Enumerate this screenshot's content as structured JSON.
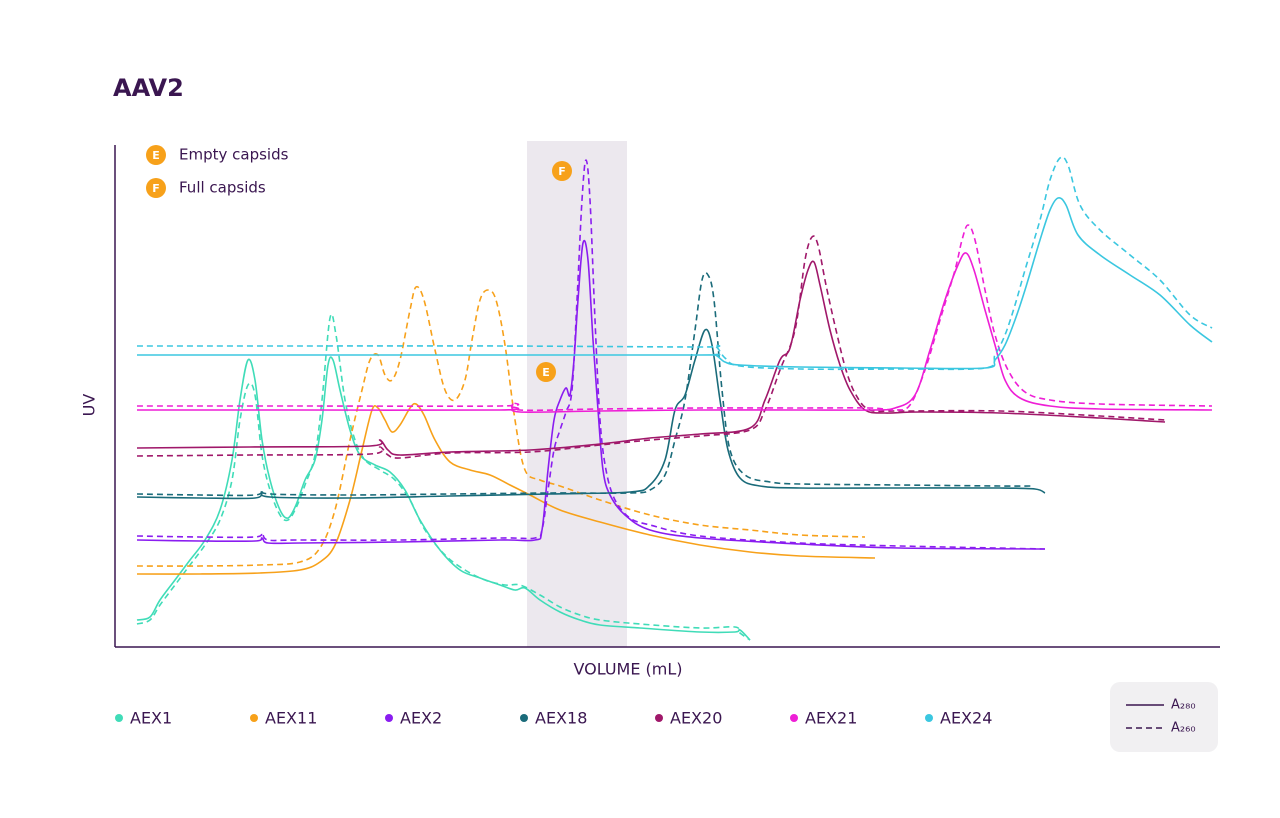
{
  "chart_data": {
    "type": "line",
    "title": "AAV2",
    "x_label": "VOLUME (mL)",
    "y_label": "UV",
    "xlim": [
      0,
      1105
    ],
    "ylim": [
      0,
      502
    ],
    "highlight": [
      412,
      512
    ],
    "marker_color": "#f7a11a",
    "markers": [
      {
        "label": "E",
        "text": "Empty capsids"
      },
      {
        "label": "F",
        "text": "Full capsids"
      }
    ],
    "annotations": [
      {
        "label": "E",
        "x": 431,
        "y": 275
      },
      {
        "label": "F",
        "x": 447,
        "y": 476
      }
    ],
    "line_styles": [
      {
        "label": "A₂₈₀",
        "dash": "solid"
      },
      {
        "label": "A₂₆₀",
        "dash": "dashed"
      }
    ],
    "series": [
      {
        "name": "AEX1",
        "color": "#40dcb8",
        "traces": [
          {
            "x": [
              22,
              35,
              45,
              60,
              75,
              90,
              105,
              117,
              125,
              133,
              140,
              147,
              155,
              165,
              173,
              181,
              190,
              200,
              207,
              213,
              218,
              225,
              235,
              245,
              260,
              275,
              290,
              305,
              325,
              345,
              365,
              385,
              400,
              410,
              425,
              445,
              465,
              485,
              525,
              585,
              620,
              625,
              635
            ],
            "values": [
              27,
              30,
              47,
              67,
              87,
              107,
              137,
              187,
              247,
              287,
              267,
              207,
              167,
              137,
              129,
              142,
              167,
              187,
              227,
              282,
              287,
              257,
              217,
              192,
              182,
              175,
              157,
              127,
              97,
              77,
              69,
              62,
              57,
              59,
              47,
              35,
              27,
              22,
              19,
              15,
              15,
              17,
              7
            ]
          },
          {
            "x": [
              22,
              35,
              45,
              60,
              75,
              90,
              105,
              117,
              125,
              133,
              140,
              147,
              155,
              165,
              173,
              181,
              190,
              200,
              207,
              215,
              221,
              230,
              240,
              250,
              265,
              280,
              295,
              310,
              330,
              350,
              370,
              390,
              405,
              425,
              445,
              465,
              485,
              525,
              585,
              620,
              625,
              635
            ],
            "values": [
              23,
              27,
              42,
              62,
              82,
              102,
              127,
              167,
              227,
              262,
              252,
              192,
              157,
              132,
              127,
              139,
              162,
              192,
              247,
              329,
              312,
              247,
              207,
              187,
              177,
              167,
              147,
              117,
              92,
              77,
              67,
              62,
              62,
              52,
              40,
              32,
              27,
              23,
              19,
              20,
              14,
              7
            ]
          }
        ]
      },
      {
        "name": "AEX11",
        "color": "#f7a11a",
        "traces": [
          {
            "x": [
              22,
              85,
              145,
              185,
              205,
              220,
              235,
              247,
              257,
              263,
              270,
              277,
              285,
              295,
              301,
              309,
              320,
              335,
              355,
              375,
              395,
              415,
              445,
              485,
              535,
              585,
              635,
              685,
              760
            ],
            "values": [
              73,
              73,
              74,
              77,
              85,
              102,
              147,
              197,
              237,
              239,
              227,
              215,
              222,
              239,
              243,
              232,
              207,
              185,
              177,
              172,
              162,
              152,
              137,
              125,
              112,
              102,
              95,
              91,
              89
            ]
          },
          {
            "x": [
              22,
              85,
              145,
              185,
              205,
              220,
              235,
              247,
              255,
              263,
              270,
              277,
              285,
              295,
              301,
              309,
              320,
              330,
              340,
              350,
              357,
              365,
              373,
              381,
              390,
              400,
              410,
              425,
              445,
              485,
              535,
              585,
              635,
              685,
              750
            ],
            "values": [
              81,
              81,
              82,
              85,
              99,
              137,
              207,
              257,
              287,
              292,
              272,
              267,
              287,
              337,
              360,
              347,
              297,
              257,
              247,
              267,
              307,
              347,
              357,
              347,
              302,
              227,
              177,
              167,
              161,
              147,
              132,
              122,
              117,
              112,
              110
            ]
          }
        ]
      },
      {
        "name": "AEX2",
        "color": "#8a1df0",
        "traces": [
          {
            "x": [
              22,
              85,
              140,
              147,
              153,
              185,
              285,
              385,
              420,
              427,
              433,
              439,
              445,
              451,
              455,
              459,
              463,
              468,
              473,
              478,
              483,
              488,
              495,
              510,
              535,
              585,
              685,
              785,
              930
            ],
            "values": [
              107,
              106,
              106,
              109,
              104,
              104,
              105,
              107,
              107,
              117,
              177,
              227,
              247,
              259,
              252,
              287,
              347,
              404,
              387,
              307,
              237,
              177,
              152,
              132,
              117,
              109,
              103,
              99,
              98
            ]
          },
          {
            "x": [
              22,
              85,
              140,
              147,
              153,
              185,
              285,
              385,
              420,
              427,
              433,
              439,
              445,
              451,
              457,
              462,
              467,
              471,
              475,
              480,
              485,
              491,
              500,
              515,
              535,
              585,
              685,
              785,
              930
            ],
            "values": [
              111,
              110,
              110,
              114,
              107,
              107,
              107,
              109,
              109,
              117,
              157,
              197,
              217,
              235,
              257,
              347,
              447,
              487,
              447,
              327,
              227,
              177,
              147,
              129,
              122,
              111,
              104,
              101,
              98
            ]
          }
        ]
      },
      {
        "name": "AEX18",
        "color": "#1a6b7a",
        "traces": [
          {
            "x": [
              22,
              85,
              140,
              147,
              155,
              235,
              335,
              435,
              515,
              535,
              550,
              560,
              570,
              580,
              590,
              597,
              605,
              613,
              625,
              645,
              685,
              785,
              885,
              920,
              930
            ],
            "values": [
              150,
              149,
              149,
              155,
              150,
              149,
              151,
              153,
              155,
              162,
              187,
              237,
              252,
              287,
              317,
              302,
              247,
              197,
              169,
              161,
              159,
              159,
              159,
              158,
              154
            ]
          },
          {
            "x": [
              22,
              85,
              140,
              147,
              155,
              235,
              335,
              435,
              515,
              535,
              550,
              560,
              570,
              580,
              587,
              593,
              599,
              607,
              615,
              630,
              655,
              685,
              785,
              885,
              917
            ],
            "values": [
              153,
              152,
              152,
              157,
              153,
              152,
              153,
              154,
              154,
              157,
              172,
              207,
              247,
              317,
              367,
              372,
              347,
              257,
              197,
              172,
              165,
              163,
              162,
              161,
              161
            ]
          }
        ]
      },
      {
        "name": "AEX20",
        "color": "#a0186a",
        "traces": [
          {
            "x": [
              22,
              135,
              255,
              265,
              273,
              285,
              335,
              415,
              485,
              535,
              585,
              635,
              650,
              665,
              675,
              685,
              693,
              699,
              705,
              715,
              725,
              735,
              750,
              770,
              805,
              885,
              985,
              1050
            ],
            "values": [
              199,
              200,
              201,
              207,
              197,
              192,
              195,
              197,
              203,
              209,
              213,
              219,
              247,
              287,
              299,
              347,
              377,
              385,
              362,
              317,
              282,
              257,
              237,
              234,
              235,
              234,
              229,
              225
            ]
          },
          {
            "x": [
              22,
              135,
              255,
              265,
              273,
              285,
              335,
              415,
              485,
              535,
              585,
              635,
              650,
              665,
              680,
              690,
              697,
              703,
              711,
              721,
              731,
              741,
              755,
              785,
              885,
              985,
              1050
            ],
            "values": [
              191,
              192,
              193,
              200,
              192,
              189,
              194,
              195,
              202,
              207,
              211,
              217,
              237,
              277,
              317,
              387,
              410,
              402,
              362,
              317,
              277,
              252,
              237,
              236,
              236,
              231,
              227
            ]
          }
        ]
      },
      {
        "name": "AEX21",
        "color": "#ee1fd6",
        "traces": [
          {
            "x": [
              22,
              185,
              385,
              397,
              405,
              485,
              585,
              685,
              755,
              780,
              800,
              815,
              830,
              843,
              851,
              859,
              870,
              880,
              890,
              905,
              935,
              985,
              1097
            ],
            "values": [
              237,
              237,
              237,
              240,
              235,
              236,
              237,
              237,
              237,
              239,
              252,
              297,
              347,
              382,
              394,
              377,
              337,
              302,
              267,
              249,
              241,
              238,
              237
            ]
          },
          {
            "x": [
              22,
              185,
              385,
              397,
              405,
              485,
              585,
              685,
              755,
              780,
              795,
              810,
              825,
              840,
              847,
              853,
              860,
              870,
              880,
              893,
              910,
              935,
              985,
              1097
            ],
            "values": [
              241,
              241,
              241,
              244,
              237,
              238,
              239,
              239,
              239,
              237,
              242,
              277,
              327,
              377,
              407,
              422,
              407,
              357,
              312,
              277,
              255,
              247,
              243,
              241
            ]
          }
        ]
      },
      {
        "name": "AEX24",
        "color": "#3bc7e0",
        "traces": [
          {
            "x": [
              22,
              185,
              385,
              585,
              600,
              610,
              625,
              685,
              785,
              870,
              880,
              890,
              900,
              910,
              925,
              935,
              943,
              951,
              963,
              985,
              1015,
              1045,
              1075,
              1097
            ],
            "values": [
              292,
              292,
              292,
              292,
              292,
              285,
              282,
              280,
              279,
              279,
              287,
              302,
              327,
              357,
              407,
              437,
              449,
              442,
              412,
              392,
              372,
              352,
              322,
              305
            ]
          },
          {
            "x": [
              22,
              185,
              385,
              585,
              600,
              610,
              625,
              685,
              785,
              870,
              880,
              890,
              900,
              910,
              925,
              935,
              945,
              953,
              965,
              985,
              1015,
              1045,
              1075,
              1097
            ],
            "values": [
              301,
              301,
              301,
              300,
              301,
              289,
              281,
              278,
              278,
              279,
              292,
              312,
              342,
              377,
              427,
              467,
              489,
              482,
              442,
              417,
              392,
              367,
              332,
              319
            ]
          }
        ]
      }
    ]
  }
}
